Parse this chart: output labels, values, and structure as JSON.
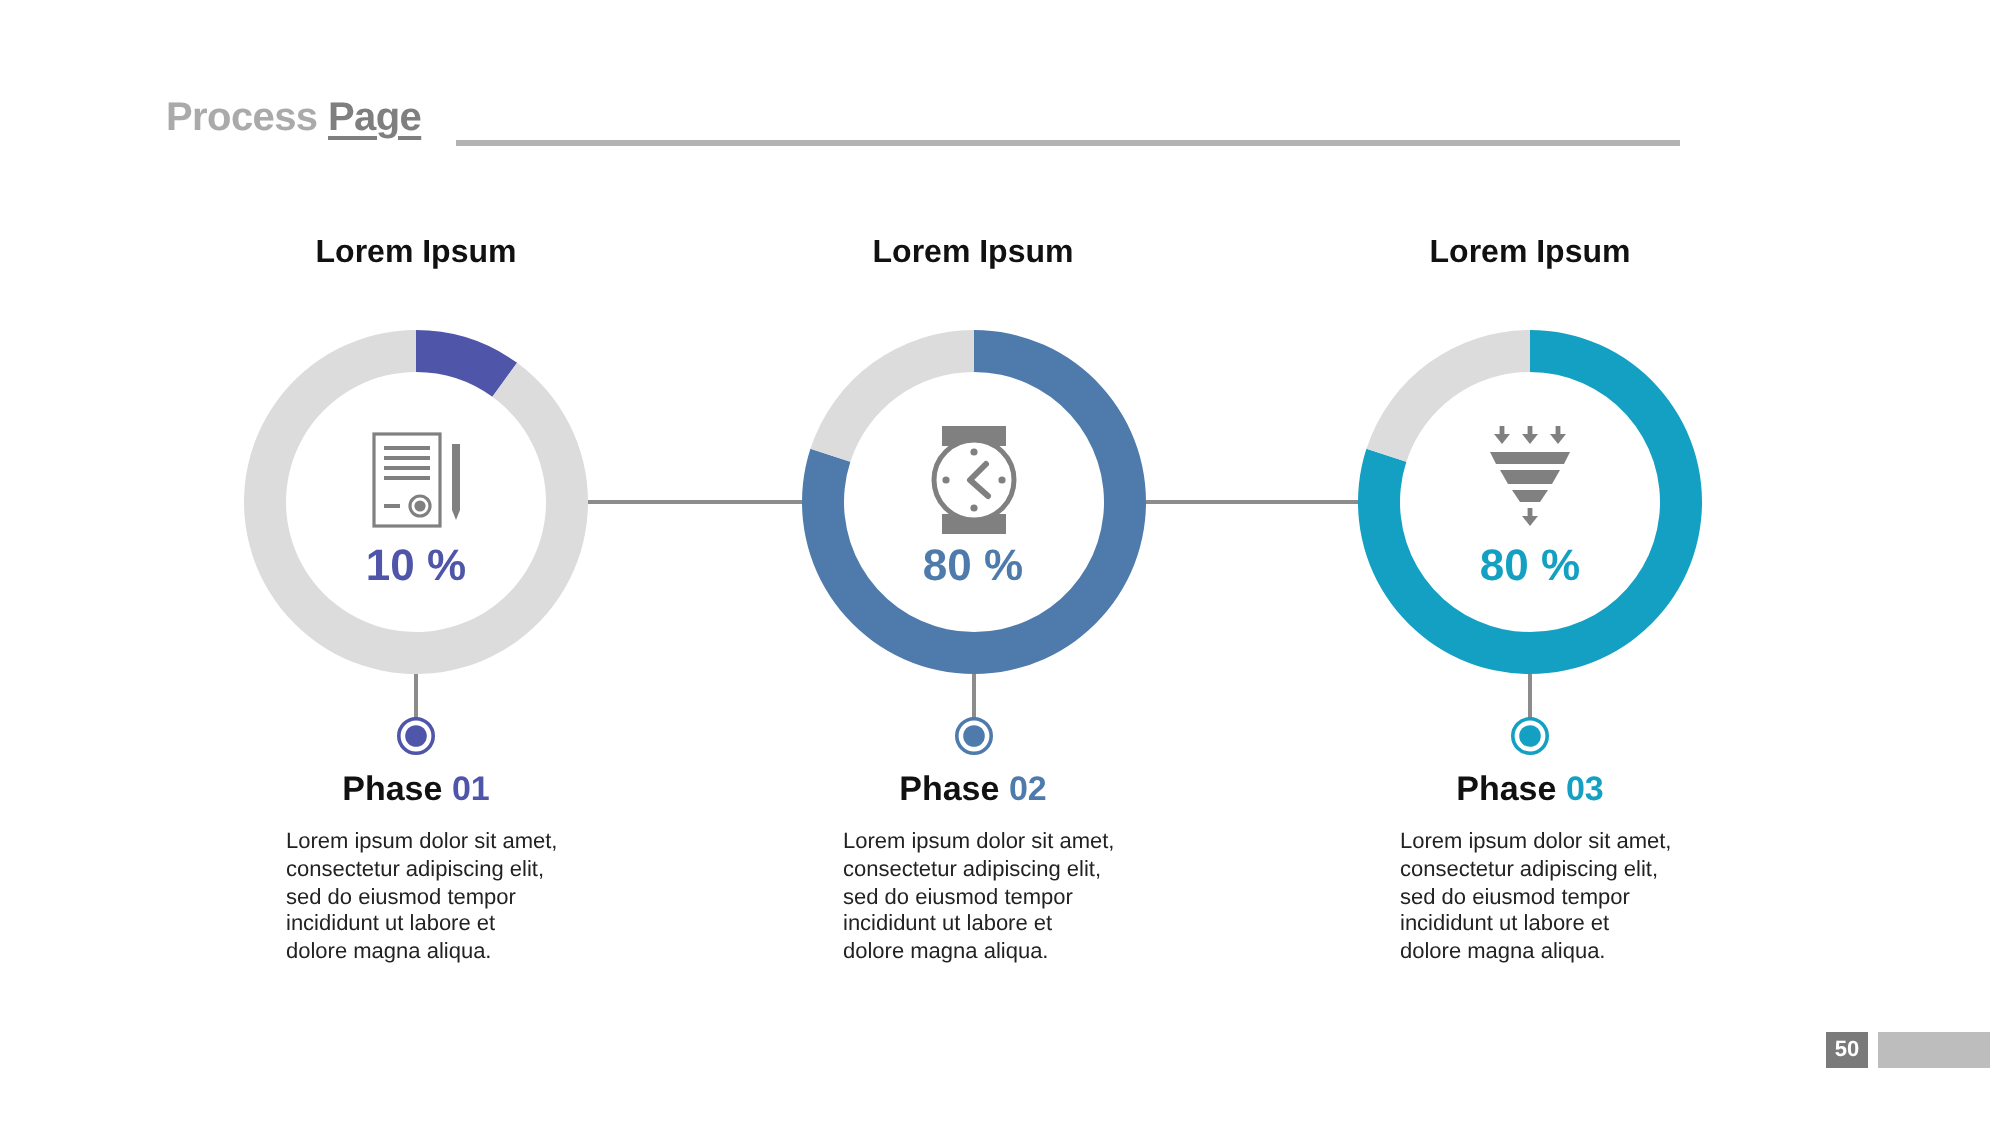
{
  "chart_data": [
    {
      "type": "other",
      "title": "Process Page",
      "annotations": [
        "50"
      ]
    },
    {
      "type": "donut",
      "title": "Lorem Ipsum",
      "categories": [
        null,
        null
      ],
      "values": [
        10,
        90
      ],
      "colors": [
        "#4f56a9",
        "#dcdcdc"
      ],
      "annotations": [
        "10 %",
        "Phase 01",
        "Lorem ipsum dolor sit amet, consectetur adipiscing elit, sed do eiusmod tempor incididunt ut labore et dolore magna aliqua."
      ]
    },
    {
      "type": "donut",
      "title": "Lorem Ipsum",
      "categories": [
        null,
        null
      ],
      "values": [
        80,
        20
      ],
      "colors": [
        "#4e7bac",
        "#dcdcdc"
      ],
      "annotations": [
        "80 %",
        "Phase 02",
        "Lorem ipsum dolor sit amet, consectetur adipiscing elit, sed do eiusmod tempor incididunt ut labore et dolore magna aliqua."
      ]
    },
    {
      "type": "donut",
      "title": "Lorem Ipsum",
      "categories": [
        null,
        null
      ],
      "values": [
        80,
        20
      ],
      "colors": [
        "#14a0c2",
        "#dcdcdc"
      ],
      "annotations": [
        "80 %",
        "Phase 03",
        "Lorem ipsum dolor sit amet, consectetur adipiscing elit, sed do eiusmod tempor incididunt ut labore et dolore magna aliqua."
      ]
    }
  ]
}
